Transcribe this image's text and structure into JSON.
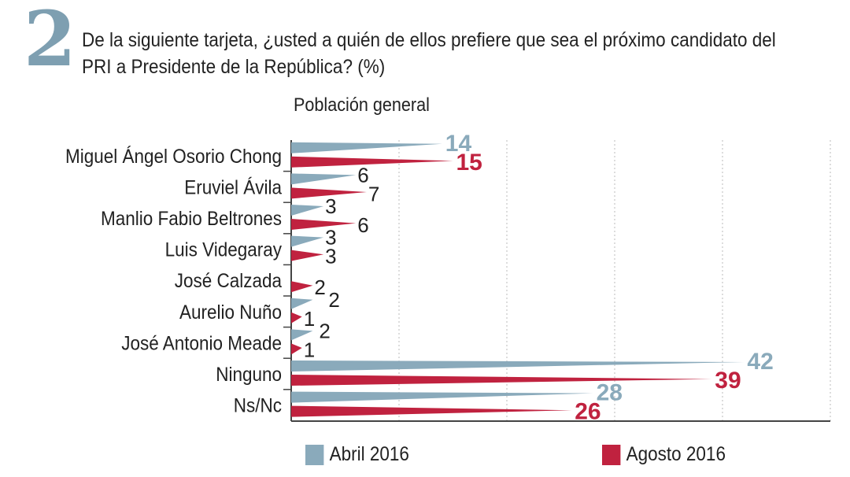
{
  "header": {
    "number": "2",
    "question": "De la siguiente tarjeta, ¿usted a quién de ellos prefiere que sea el próximo candidato del PRI a Presidente de la República? (%)",
    "subtitle": "Población general"
  },
  "chart_data": {
    "type": "bar",
    "title": "De la siguiente tarjeta, ¿usted a quién de ellos prefiere que sea el próximo candidato del PRI a Presidente de la República? (%)",
    "subtitle": "Población general",
    "xlim": [
      0,
      50
    ],
    "grid": true,
    "legend": "bottom",
    "categories": [
      "Miguel Ángel Osorio Chong",
      "Eruviel Ávila",
      "Manlio Fabio Beltrones",
      "Luis Videgaray",
      "José Calzada",
      "Aurelio Nuño",
      "José Antonio Meade",
      "Ninguno",
      "Ns/Nc"
    ],
    "series": [
      {
        "name": "Abril 2016",
        "color": "#8aaabb",
        "values": [
          14,
          6,
          3,
          3,
          null,
          2,
          2,
          42,
          28
        ]
      },
      {
        "name": "Agosto 2016",
        "color": "#c0223f",
        "values": [
          15,
          7,
          6,
          3,
          2,
          1,
          1,
          39,
          26
        ]
      }
    ]
  }
}
